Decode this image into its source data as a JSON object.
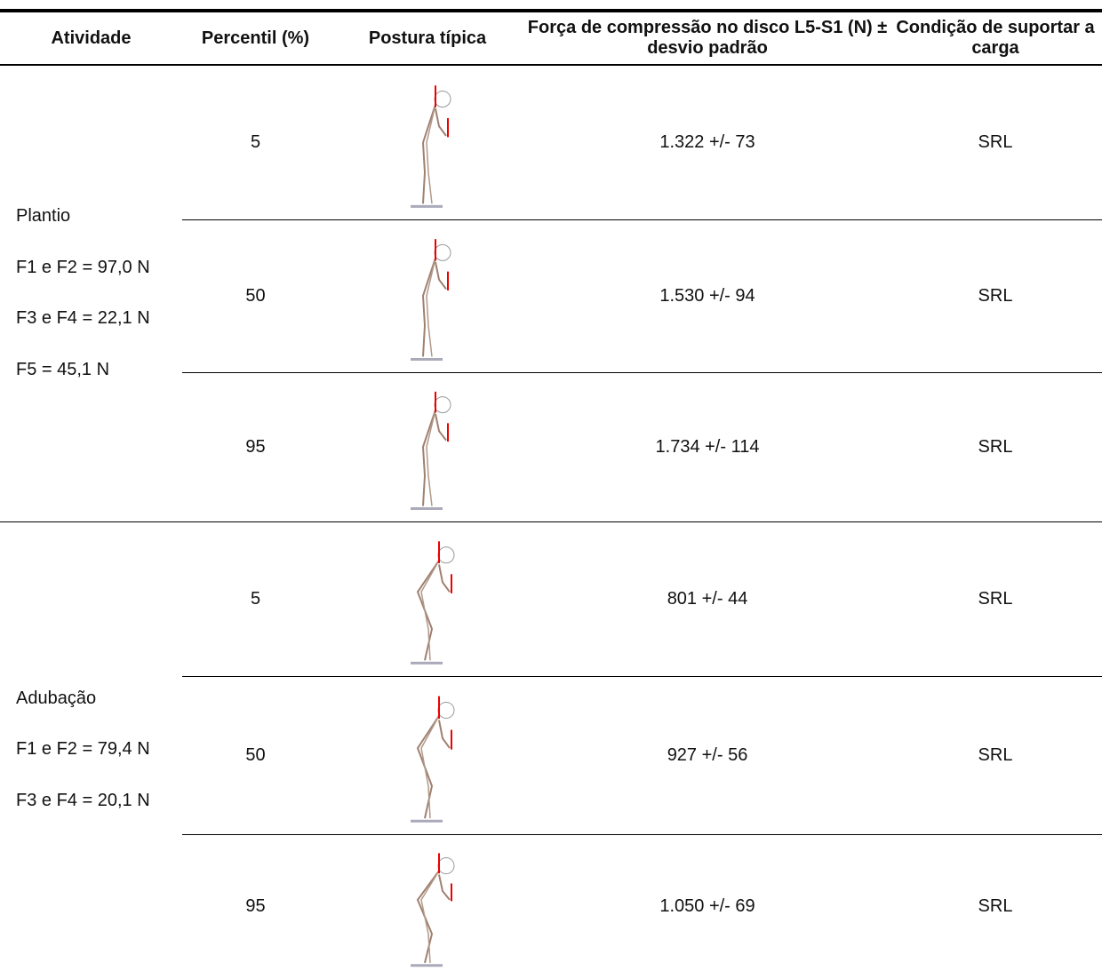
{
  "header": {
    "columns": [
      "Atividade",
      "Percentil (%)",
      "Postura típica",
      "Força de compressão no disco L5-S1 (N) ± desvio padrão",
      "Condição de suportar a carga"
    ]
  },
  "groups": [
    {
      "activity": [
        "Plantio",
        "F1 e F2 = 97,0 N",
        "F3 e F4 = 22,1 N",
        "F5 = 45,1 N"
      ],
      "rows": [
        {
          "percentile": 5,
          "force": "1.322 +/- 73",
          "condition": "SRL"
        },
        {
          "percentile": 50,
          "force": "1.530 +/- 94",
          "condition": "SRL"
        },
        {
          "percentile": 95,
          "force": "1.734 +/- 114",
          "condition": "SRL"
        }
      ]
    },
    {
      "activity": [
        "Adubação",
        "F1 e F2 = 79,4 N",
        "F3 e F4 = 20,1 N"
      ],
      "rows": [
        {
          "percentile": 5,
          "force": "801 +/- 44",
          "condition": "SRL"
        },
        {
          "percentile": 50,
          "force": "927 +/- 56",
          "condition": "SRL"
        },
        {
          "percentile": 95,
          "force": "1.050 +/- 69",
          "condition": "SRL"
        }
      ]
    }
  ]
}
